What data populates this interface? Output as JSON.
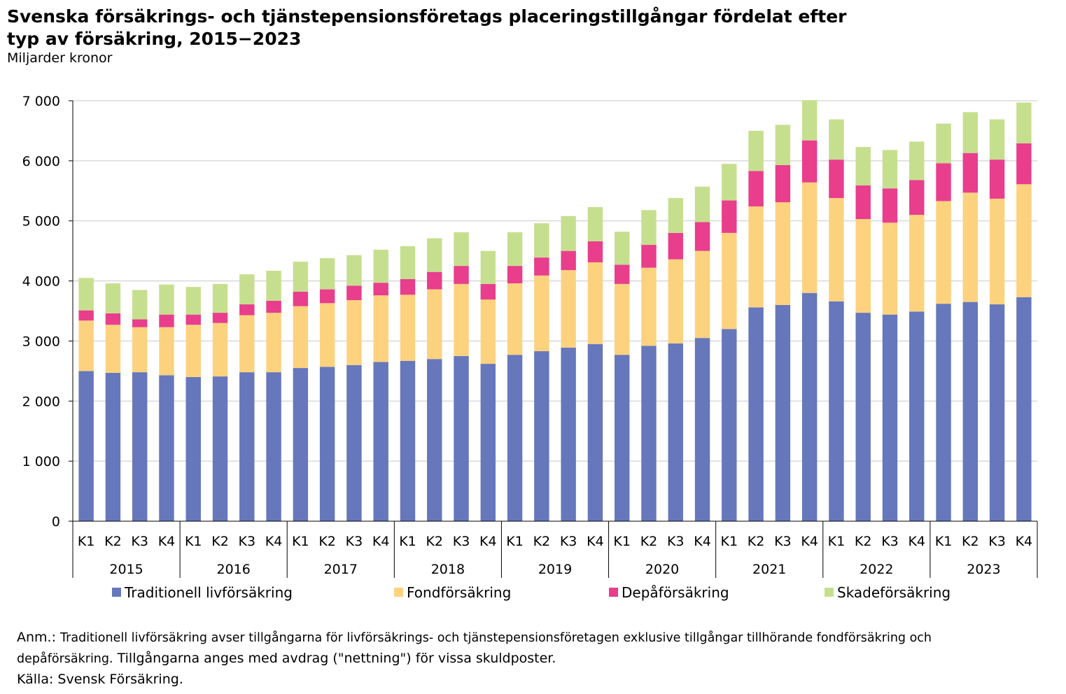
{
  "title_line1": "Svenska försäkrings- och tjänstepensionsföretags placeringstillgångar fördelat efter",
  "title_line2": "typ av försäkring, 2015−2023",
  "unit": "Miljarder kronor",
  "note": {
    "label": "Anm.:",
    "text1": "Traditionell livförsäkring avser tillgångarna för livförsäkrings- och tjänstepensionsföretagen exklusive tillgångar tillhörande fondförsäkring och",
    "text2a": "depåförsäkring.",
    "text2b": "Tillgångarna anges med avdrag (\"nettning\") för vissa skuldposter.",
    "source": "Källa: Svensk Försäkring."
  },
  "chart_data": {
    "type": "bar",
    "stacked": true,
    "title": "Svenska försäkrings- och tjänstepensionsföretags placeringstillgångar fördelat efter typ av försäkring, 2015−2023",
    "ylabel": "Miljarder kronor",
    "ylim": [
      0,
      7000
    ],
    "yticks": [
      0,
      1000,
      2000,
      3000,
      4000,
      5000,
      6000,
      7000
    ],
    "ytick_labels": [
      "0",
      "1 000",
      "2 000",
      "3 000",
      "4 000",
      "5 000",
      "6 000",
      "7 000"
    ],
    "grid": true,
    "legend_position": "bottom",
    "quarters": [
      "K1",
      "K2",
      "K3",
      "K4"
    ],
    "years": [
      "2015",
      "2016",
      "2017",
      "2018",
      "2019",
      "2020",
      "2021",
      "2022",
      "2023"
    ],
    "series": [
      {
        "name": "Traditionell livförsäkring",
        "color": "#6677bb",
        "values": [
          2500,
          2470,
          2480,
          2430,
          2400,
          2410,
          2480,
          2480,
          2550,
          2570,
          2600,
          2650,
          2670,
          2700,
          2750,
          2620,
          2770,
          2830,
          2890,
          2950,
          2770,
          2920,
          2960,
          3050,
          3200,
          3560,
          3600,
          3800,
          3660,
          3470,
          3440,
          3490,
          3620,
          3650,
          3610,
          3730
        ]
      },
      {
        "name": "Fondförsäkring",
        "color": "#fdd27f",
        "values": [
          840,
          800,
          750,
          800,
          870,
          890,
          950,
          990,
          1030,
          1060,
          1080,
          1110,
          1100,
          1160,
          1200,
          1070,
          1190,
          1260,
          1290,
          1360,
          1180,
          1300,
          1400,
          1450,
          1600,
          1680,
          1710,
          1840,
          1720,
          1560,
          1530,
          1610,
          1710,
          1820,
          1760,
          1880
        ]
      },
      {
        "name": "Depåförsäkring",
        "color": "#e83e8c",
        "values": [
          170,
          190,
          130,
          210,
          170,
          170,
          180,
          200,
          240,
          230,
          240,
          210,
          260,
          290,
          300,
          260,
          290,
          300,
          320,
          350,
          320,
          380,
          440,
          480,
          540,
          590,
          620,
          700,
          640,
          560,
          570,
          580,
          630,
          660,
          650,
          680
        ]
      },
      {
        "name": "Skadeförsäkring",
        "color": "#c6df8f",
        "values": [
          540,
          500,
          490,
          500,
          460,
          480,
          500,
          500,
          500,
          520,
          510,
          550,
          550,
          560,
          560,
          550,
          560,
          570,
          580,
          570,
          550,
          580,
          580,
          590,
          610,
          670,
          670,
          670,
          670,
          640,
          640,
          640,
          660,
          680,
          670,
          680
        ]
      }
    ]
  }
}
